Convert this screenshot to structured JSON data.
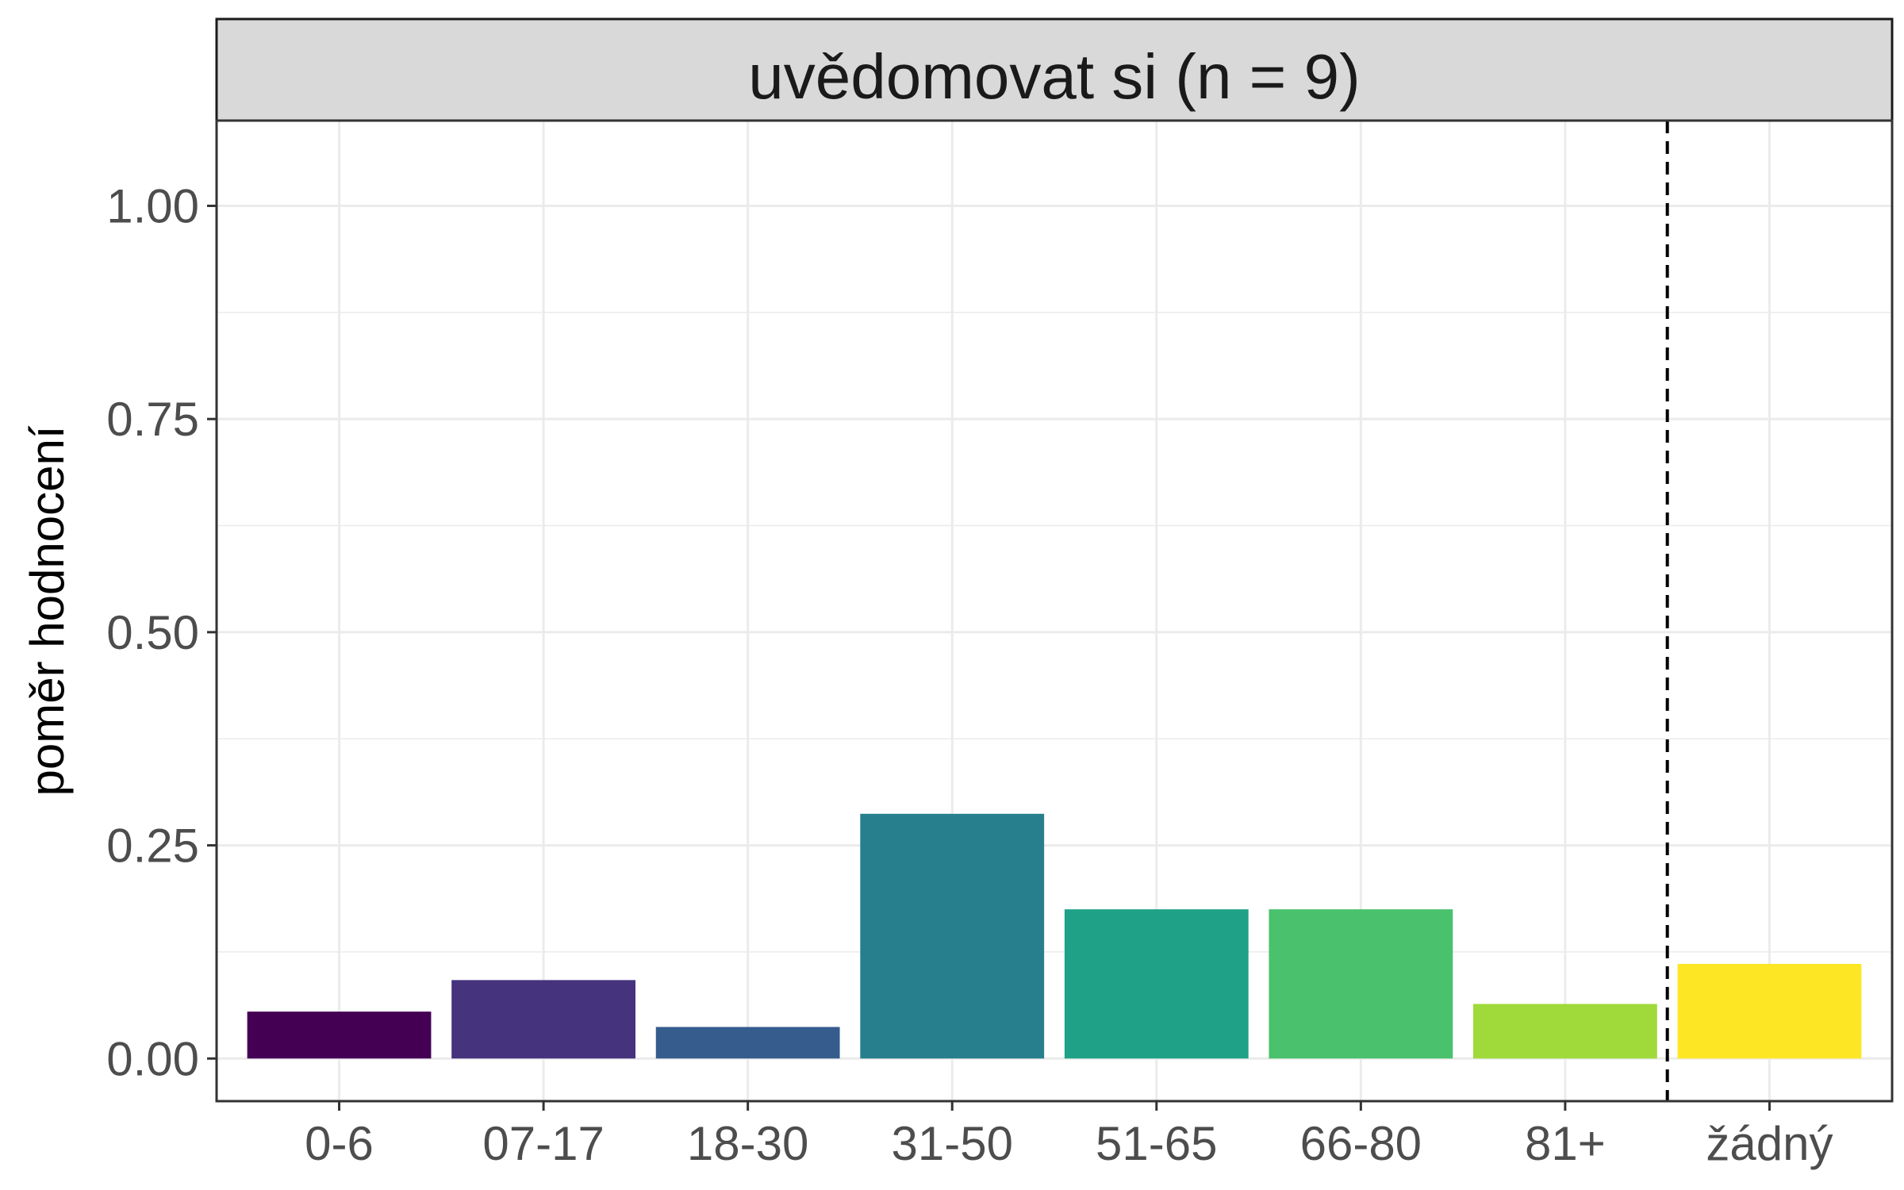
{
  "chart_data": {
    "type": "bar",
    "title": "uvědomovat si (n = 9)",
    "xlabel": "",
    "ylabel": "poměr hodnocení",
    "categories": [
      "0-6",
      "07-17",
      "18-30",
      "31-50",
      "51-65",
      "66-80",
      "81+",
      "žádný"
    ],
    "values": [
      0.055,
      0.092,
      0.037,
      0.287,
      0.175,
      0.175,
      0.064,
      0.111
    ],
    "colors": [
      "#440154",
      "#46337E",
      "#365C8D",
      "#277F8E",
      "#1FA187",
      "#4AC16D",
      "#9FDA3A",
      "#FDE725"
    ],
    "ylim": [
      -0.05,
      1.1
    ],
    "yticks": [
      "0.00",
      "0.25",
      "0.50",
      "0.75",
      "1.00"
    ],
    "ytick_values": [
      0,
      0.25,
      0.5,
      0.75,
      1.0
    ],
    "grid": true,
    "separator": {
      "between": [
        "81+",
        "žádný"
      ],
      "style": "dashed"
    }
  }
}
